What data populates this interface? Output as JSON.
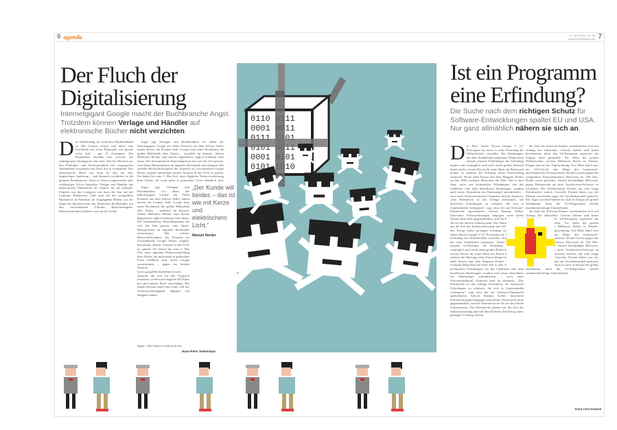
{
  "header": {
    "left_page_number": "6",
    "brand": "agenda",
    "right_date": "27. April 2009 | Nr. 80",
    "right_url": "www.handelsblatt.com",
    "right_page_number": "7"
  },
  "left_article": {
    "headline_line1": "Der Fluch der",
    "headline_line2": "Digitalisierung",
    "subhead_a": "Internetgigant Google macht der Buchbranche Angst. Trotzdem können ",
    "subhead_b": "Verlage und Händler",
    "subhead_c": " auf elektronische Bücher ",
    "subhead_d": "nicht verzichten",
    "subhead_e": ".",
    "drop_cap": "D",
    "col1": "as Wunderding im farblosen Plastikeinband ist 260 Gramm schwer und bietet eine Lesefläche mit einer Diagonale von gerade sechs Zoll – gut 15 Zentimeter. Die Buchstaben leuchten hier schwarz auf mittelgrauem Untergrund, eher matt. Wie bei Büchern aus den Fünfziger- und Sechzigerjahren des vergangenen Jahrhunderts erscheinen die Fotos nur in Graustufen. Das elektronische Buch von Sony ist also ein eher langweiliges Spielzeug – und dennoch erschüttert es die gesamte Buchbranche. Denn in Zeiten stagnierender oder rückläufiger Erlöse begreifen Verlage und Händler das elektronische Publizieren als Chance für die Zukunft. Folglich war das Lesegerät von Sony der Star auf der Leipziger Buchmesse. Und auch auf der weltgrößten Buchmesse in Frankfurt im vergangenen Herbst war der Stand des Börsenvereins des Deutschen Buchhandels mit den verschiedenen E-Books Besuchermagnet. Menschentrauben bildeten sich um die Geräte.",
    "col2": "Angst jagt Verlagen und Buchhändlern vor allem der Internetgigant Google ein. Beim Konzern aus dem Silicon Valley laufen derzeit die Scanner heiß. Google baut unter Hochdruck die größte Bibliothek aller Zeiten – natürlich im Internet. Sieben Millionen Bücher sind bereits digitalisiert, täglich kommen neue hinzu. Der börsennotierte Branchenprimus hat sich das Ziel gesetzt, zum Quasi-Monopolisten im digitalen Buchmarkt aufzusteigen. Mit welcher Rücksichtslosigkeit der Konzern im Geschäftsfeld Google Books vorgeht, bekommen derzeit Autoren in den USA zu spüren. Sie haben bis zum 5. Mai Zeit, einer digitalen Weiterverarbeitung ihrer Werke, die nicht mehr in gedruckter Form erhältlich sind, durch Google zuzustimmen – gegen ein kleines Honorar (www.googlebooksettlement.com). Autoren, die sich auf den Vergleich einlassen, werden mit mageren 60 Dollar pro gescanntem Buch entschädigt. Bei einem Boykott durch den Autor will der Suchmaschinengigant dagegen ein Bußgeld zahlen.",
    "col2_end": "digen.“ Die Antwort steht noch aus.",
    "byline": "Hans-Peter Siebenhaar",
    "pull_quote": "„Der Kunde will beides – das ist wie mit Kerze und elektrischem Licht.“",
    "pull_quote_author": "Manuel Herder"
  },
  "right_article": {
    "headline_line1": "Ist ein Programm",
    "headline_line2": "eine Erfindung?",
    "subhead_a": "Die Suche nach dem ",
    "subhead_b": "richtigen Schutz",
    "subhead_c": " für Software-Entwicklungen spaltet EU und USA. Nur ganz allmählich ",
    "subhead_d": "nähern sie sich an",
    "subhead_e": ".",
    "drop_cap": "D",
    "col1": "er Brite James Dyson fertigte 5 127 Prototypen an, bevor er seine Erfindung der Öffentlichkeit vorstellte: den Staubsauger, der ohne Staubbeutel auskommt. Damit nicht einfach jemand X-beliebiges die Erfindung kopiert und womöglich auch noch einen großen Reibach damit macht, erwarb Dyson für seine Ideen ein Patent und konnte so anderen die Nutzung seiner Entwicklung verbieten. Heute zählt Dyson laut dem Magazin Forbes zu den 1000 reichsten Menschen der Welt. Hat es aber Sinn, nicht nur technischen Erfindungen wie der Glühbirne oder dem beutellosen Staubsauger, sondern auch etwas Abstraktem ein Patentsiegel aufzudrücken – etwa einer Softwarefunktion? Experten sind da skeptisch. „Das Patentrecht ist das richtige Instrument, um klassische Erfindungen zu schützen, die sich in Gegenständen verkörpern“, sagt etwa der auf Software-Patentrecht spezialisierte Anwalt Rasmus Keller. Innovative Softwarelösungen hingegen seien ihrem Wesen nach nicht gegenständlich, und das Patentrecht sei für sie das falsche Schutzsystem. Das Patentrecht stammt aus der Zeit der Industrialisierung und soll dem Erfinder den Ertrag seiner geistigen Leistung sichern.",
    "col2": "die Zahl der Software-Patente verzehnfachte sich seit Anfang des Jahrzehnts. Genaue Zahlen sind kaum berechenbar, denn das US-Patentamt registriert die Gruppe nicht gesondert. Vor allem die großen Wettbewerber stecken Millionen Dollar in Patente. Klagen sind an der Tagesordnung. Erst Mitte April wies ein US-Gericht eine Klage des französisch-amerikanischen Netzausrüsters Alcatel-Lucent gegen den weltgrößten Softwarekonzern Microsoft ab. 358 Mio. Dollar waren gefordert. Alcatel beschuldigte Microsoft, gegen Patentrechte an einer Touchscreen-Software zu verstoßen. Die Konkurrenten blicken auf eine lange Streithistorie zurück. Gewiefte Firmen haben aus der Materie inzwischen sogar ein Geschäftsmodell gemacht. Der Ärger mit den Patenten ist auch in Europa ein großes Streitthema, denn die US-Klagemanie betrifft zunehmend hiesige Unternehmen.",
    "byline": "Kora Cora Krause"
  },
  "colors": {
    "accent": "#e8821e",
    "panel": "#8bbcc0",
    "sun": "#ffe600"
  }
}
